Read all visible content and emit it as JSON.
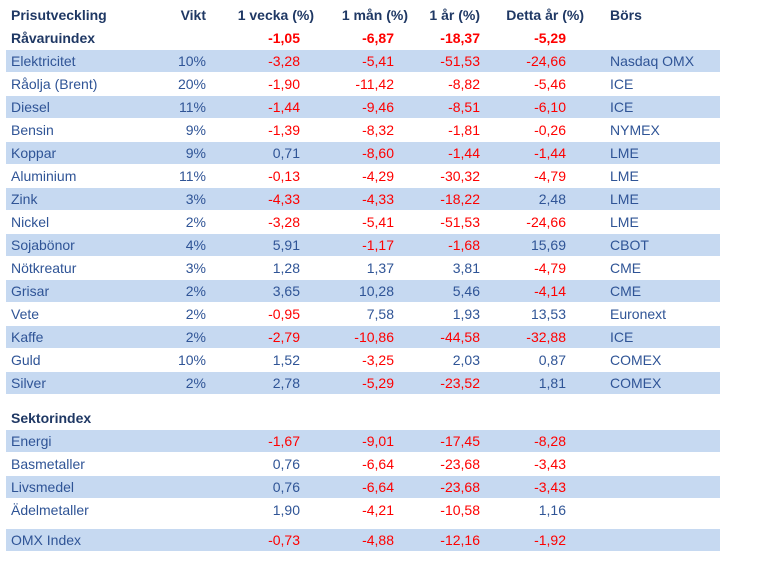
{
  "columns": [
    "Prisutveckling",
    "Vikt",
    "1 vecka (%)",
    "1 mån (%)",
    "1 år (%)",
    "Detta år (%)",
    "Börs"
  ],
  "ravaruindex": {
    "label": "Råvaruindex",
    "w1": "-1,05",
    "m1": "-6,87",
    "y1": "-18,37",
    "ytd": "-5,29"
  },
  "commodities": [
    {
      "label": "Elektricitet",
      "vikt": "10%",
      "w1": "-3,28",
      "m1": "-5,41",
      "y1": "-51,53",
      "ytd": "-24,66",
      "bors": "Nasdaq OMX"
    },
    {
      "label": "Råolja (Brent)",
      "vikt": "20%",
      "w1": "-1,90",
      "m1": "-11,42",
      "y1": "-8,82",
      "ytd": "-5,46",
      "bors": "ICE"
    },
    {
      "label": "Diesel",
      "vikt": "11%",
      "w1": "-1,44",
      "m1": "-9,46",
      "y1": "-8,51",
      "ytd": "-6,10",
      "bors": "ICE"
    },
    {
      "label": "Bensin",
      "vikt": "9%",
      "w1": "-1,39",
      "m1": "-8,32",
      "y1": "-1,81",
      "ytd": "-0,26",
      "bors": "NYMEX"
    },
    {
      "label": "Koppar",
      "vikt": "9%",
      "w1": "0,71",
      "m1": "-8,60",
      "y1": "-1,44",
      "ytd": "-1,44",
      "bors": "LME"
    },
    {
      "label": "Aluminium",
      "vikt": "11%",
      "w1": "-0,13",
      "m1": "-4,29",
      "y1": "-30,32",
      "ytd": "-4,79",
      "bors": "LME"
    },
    {
      "label": "Zink",
      "vikt": "3%",
      "w1": "-4,33",
      "m1": "-4,33",
      "y1": "-18,22",
      "ytd": "2,48",
      "bors": "LME"
    },
    {
      "label": "Nickel",
      "vikt": "2%",
      "w1": "-3,28",
      "m1": "-5,41",
      "y1": "-51,53",
      "ytd": "-24,66",
      "bors": "LME"
    },
    {
      "label": "Sojabönor",
      "vikt": "4%",
      "w1": "5,91",
      "m1": "-1,17",
      "y1": "-1,68",
      "ytd": "15,69",
      "bors": "CBOT"
    },
    {
      "label": "Nötkreatur",
      "vikt": "3%",
      "w1": "1,28",
      "m1": "1,37",
      "y1": "3,81",
      "ytd": "-4,79",
      "bors": "CME"
    },
    {
      "label": "Grisar",
      "vikt": "2%",
      "w1": "3,65",
      "m1": "10,28",
      "y1": "5,46",
      "ytd": "-4,14",
      "bors": "CME"
    },
    {
      "label": "Vete",
      "vikt": "2%",
      "w1": "-0,95",
      "m1": "7,58",
      "y1": "1,93",
      "ytd": "13,53",
      "bors": "Euronext"
    },
    {
      "label": "Kaffe",
      "vikt": "2%",
      "w1": "-2,79",
      "m1": "-10,86",
      "y1": "-44,58",
      "ytd": "-32,88",
      "bors": "ICE"
    },
    {
      "label": "Guld",
      "vikt": "10%",
      "w1": "1,52",
      "m1": "-3,25",
      "y1": "2,03",
      "ytd": "0,87",
      "bors": "COMEX"
    },
    {
      "label": "Silver",
      "vikt": "2%",
      "w1": "2,78",
      "m1": "-5,29",
      "y1": "-23,52",
      "ytd": "1,81",
      "bors": "COMEX"
    }
  ],
  "sektorindex": {
    "label": "Sektorindex"
  },
  "sectors": [
    {
      "label": "Energi",
      "w1": "-1,67",
      "m1": "-9,01",
      "y1": "-17,45",
      "ytd": "-8,28"
    },
    {
      "label": "Basmetaller",
      "w1": "0,76",
      "m1": "-6,64",
      "y1": "-23,68",
      "ytd": "-3,43"
    },
    {
      "label": "Livsmedel",
      "w1": "0,76",
      "m1": "-6,64",
      "y1": "-23,68",
      "ytd": "-3,43"
    },
    {
      "label": "Ädelmetaller",
      "w1": "1,90",
      "m1": "-4,21",
      "y1": "-10,58",
      "ytd": "1,16"
    }
  ],
  "omx": {
    "label": "OMX Index",
    "w1": "-0,73",
    "m1": "-4,88",
    "y1": "-12,16",
    "ytd": "-1,92"
  },
  "colors": {
    "row_highlight": "#C6D9F1",
    "header_text": "#1F3864",
    "label_text": "#2F5496",
    "negative_value": "#FE0000",
    "positive_value": "#2F5496"
  }
}
